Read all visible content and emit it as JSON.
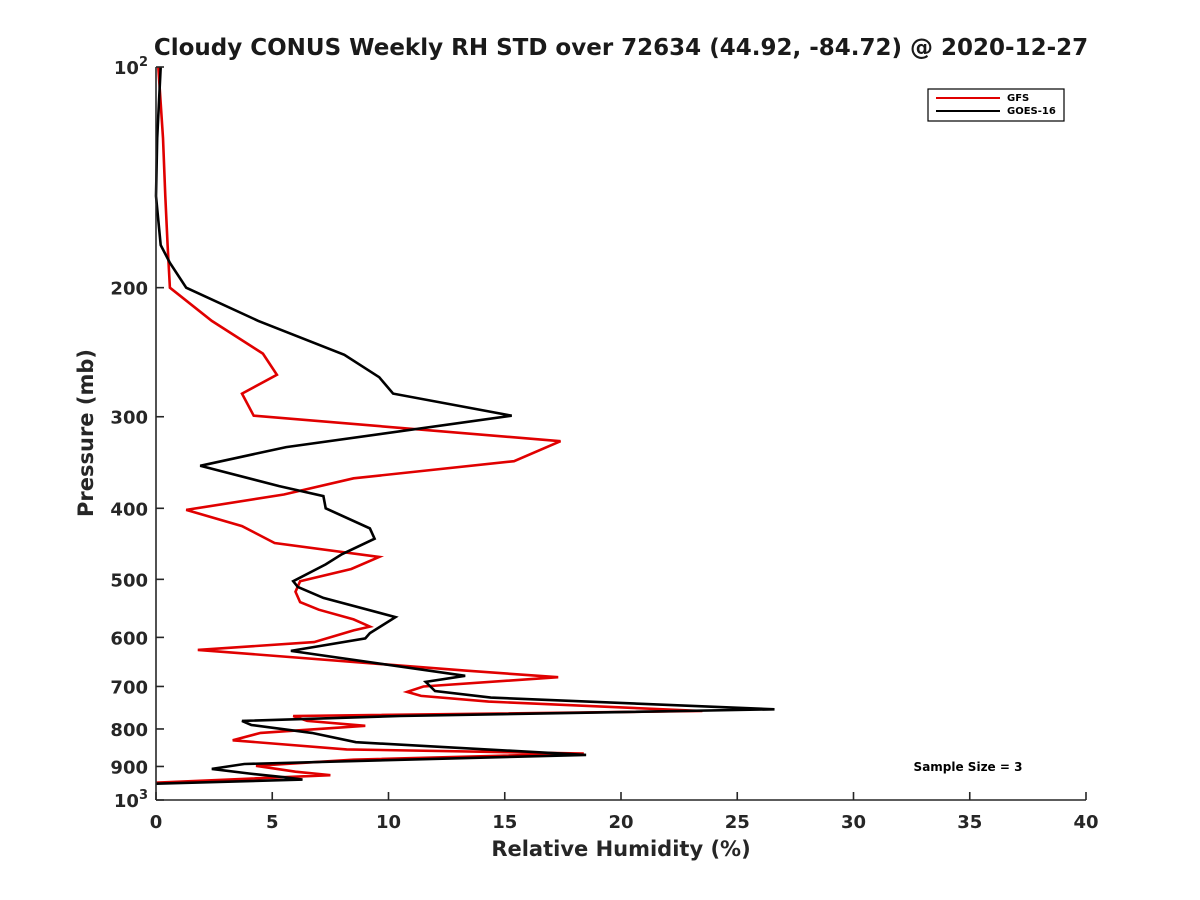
{
  "chart_data": {
    "type": "line",
    "title": "Cloudy CONUS Weekly RH STD over 72634 (44.92, -84.72) @ 2020-12-27",
    "xlabel": "Relative Humidity (%)",
    "ylabel": "Pressure (mb)",
    "xlim": [
      0,
      40
    ],
    "ylim": [
      100,
      1000
    ],
    "y_scale": "log",
    "y_reversed": false,
    "grid": false,
    "legend_position": "top-right",
    "x_ticks": [
      0,
      5,
      10,
      15,
      20,
      25,
      30,
      35,
      40
    ],
    "x_tick_labels": [
      "0",
      "5",
      "10",
      "15",
      "20",
      "25",
      "30",
      "35",
      "40"
    ],
    "y_ticks": [
      100,
      200,
      300,
      400,
      500,
      600,
      700,
      800,
      900,
      1000
    ],
    "y_tick_labels": [
      {
        "base": "10",
        "exp": "2"
      },
      {
        "base": "200",
        "exp": ""
      },
      {
        "base": "300",
        "exp": ""
      },
      {
        "base": "400",
        "exp": ""
      },
      {
        "base": "500",
        "exp": ""
      },
      {
        "base": "600",
        "exp": ""
      },
      {
        "base": "700",
        "exp": ""
      },
      {
        "base": "800",
        "exp": ""
      },
      {
        "base": "900",
        "exp": ""
      },
      {
        "base": "10",
        "exp": "3"
      }
    ],
    "annotation": "Sample Size = 3",
    "series": [
      {
        "name": "GFS",
        "color": "#e00000",
        "points": [
          [
            0.1,
            100
          ],
          [
            0.3,
            125
          ],
          [
            0.4,
            150
          ],
          [
            0.5,
            175
          ],
          [
            0.6,
            200
          ],
          [
            2.4,
            222
          ],
          [
            4.6,
            246
          ],
          [
            5.2,
            263
          ],
          [
            3.7,
            279
          ],
          [
            4.2,
            299
          ],
          [
            17.4,
            324
          ],
          [
            15.4,
            345
          ],
          [
            8.5,
            364
          ],
          [
            5.5,
            383
          ],
          [
            1.3,
            402
          ],
          [
            3.7,
            423
          ],
          [
            5.1,
            446
          ],
          [
            9.6,
            466
          ],
          [
            8.4,
            484
          ],
          [
            6.2,
            503
          ],
          [
            6.0,
            520
          ],
          [
            6.2,
            537
          ],
          [
            7.0,
            550
          ],
          [
            8.5,
            567
          ],
          [
            9.2,
            580
          ],
          [
            8.5,
            587
          ],
          [
            6.8,
            609
          ],
          [
            1.8,
            624
          ],
          [
            13.3,
            666
          ],
          [
            17.3,
            680
          ],
          [
            11.5,
            700
          ],
          [
            10.8,
            712
          ],
          [
            11.4,
            721
          ],
          [
            14.3,
            734
          ],
          [
            23.5,
            756
          ],
          [
            5.9,
            768
          ],
          [
            6.5,
            780
          ],
          [
            9.0,
            792
          ],
          [
            4.5,
            810
          ],
          [
            3.3,
            829
          ],
          [
            8.2,
            853
          ],
          [
            18.4,
            864
          ],
          [
            8.5,
            881
          ],
          [
            4.3,
            898
          ],
          [
            6.0,
            915
          ],
          [
            7.5,
            925
          ],
          [
            0.0,
            947
          ]
        ]
      },
      {
        "name": "GOES-16",
        "color": "#000000",
        "points": [
          [
            0.2,
            100
          ],
          [
            0.05,
            125
          ],
          [
            0.0,
            150
          ],
          [
            0.2,
            175
          ],
          [
            0.6,
            185
          ],
          [
            1.3,
            200
          ],
          [
            4.4,
            222
          ],
          [
            8.1,
            247
          ],
          [
            9.6,
            265
          ],
          [
            10.2,
            279
          ],
          [
            15.3,
            299
          ],
          [
            5.6,
            330
          ],
          [
            1.9,
            350
          ],
          [
            5.3,
            373
          ],
          [
            7.2,
            385
          ],
          [
            7.3,
            400
          ],
          [
            9.2,
            426
          ],
          [
            9.4,
            440
          ],
          [
            8.0,
            462
          ],
          [
            7.3,
            477
          ],
          [
            5.9,
            503
          ],
          [
            6.1,
            512
          ],
          [
            7.2,
            530
          ],
          [
            10.3,
            563
          ],
          [
            9.2,
            592
          ],
          [
            9.0,
            602
          ],
          [
            5.8,
            626
          ],
          [
            13.3,
            677
          ],
          [
            11.6,
            690
          ],
          [
            11.8,
            700
          ],
          [
            12.0,
            710
          ],
          [
            14.4,
            725
          ],
          [
            26.6,
            752
          ],
          [
            10.5,
            768
          ],
          [
            3.7,
            780
          ],
          [
            4.1,
            790
          ],
          [
            6.7,
            810
          ],
          [
            8.6,
            834
          ],
          [
            18.5,
            868
          ],
          [
            3.8,
            893
          ],
          [
            2.4,
            907
          ],
          [
            4.0,
            920
          ],
          [
            5.5,
            931
          ],
          [
            6.3,
            938
          ],
          [
            0.0,
            950
          ]
        ]
      }
    ]
  }
}
